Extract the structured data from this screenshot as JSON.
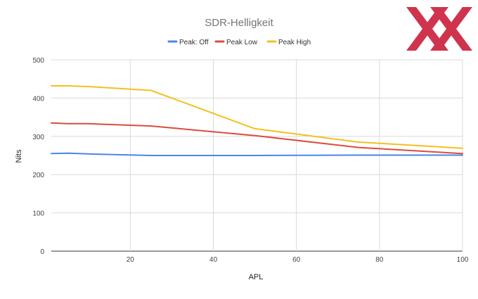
{
  "colors": {
    "peak_off": "#4a86e8",
    "peak_low": "#dd4b3e",
    "peak_high": "#f4c01d",
    "grid": "#d9d9d9",
    "axis_text": "#444444",
    "title_text": "#757575",
    "logo": "#c8102e"
  },
  "logo": {
    "text": "XX",
    "icon": "double-x-logo"
  },
  "chart_data": {
    "type": "line",
    "title": "SDR-Helligkeit",
    "xlabel": "APL",
    "ylabel": "Nits",
    "xlim": [
      1,
      100
    ],
    "ylim": [
      0,
      500
    ],
    "xticks": [
      20,
      40,
      60,
      80,
      100
    ],
    "yticks": [
      0,
      100,
      200,
      300,
      400,
      500
    ],
    "grid": true,
    "legend_position": "top",
    "series": [
      {
        "name": "Peak: Off",
        "color": "#4a86e8",
        "points": [
          [
            1,
            255
          ],
          [
            5,
            256
          ],
          [
            10,
            254
          ],
          [
            25,
            250
          ],
          [
            50,
            250
          ],
          [
            75,
            251
          ],
          [
            100,
            251
          ]
        ]
      },
      {
        "name": "Peak Low",
        "color": "#dd4b3e",
        "points": [
          [
            1,
            335
          ],
          [
            5,
            333
          ],
          [
            10,
            333
          ],
          [
            25,
            327
          ],
          [
            50,
            302
          ],
          [
            75,
            271
          ],
          [
            100,
            255
          ]
        ]
      },
      {
        "name": "Peak High",
        "color": "#f4c01d",
        "points": [
          [
            1,
            432
          ],
          [
            5,
            432
          ],
          [
            10,
            430
          ],
          [
            25,
            420
          ],
          [
            50,
            320
          ],
          [
            75,
            285
          ],
          [
            100,
            269
          ]
        ]
      }
    ]
  }
}
